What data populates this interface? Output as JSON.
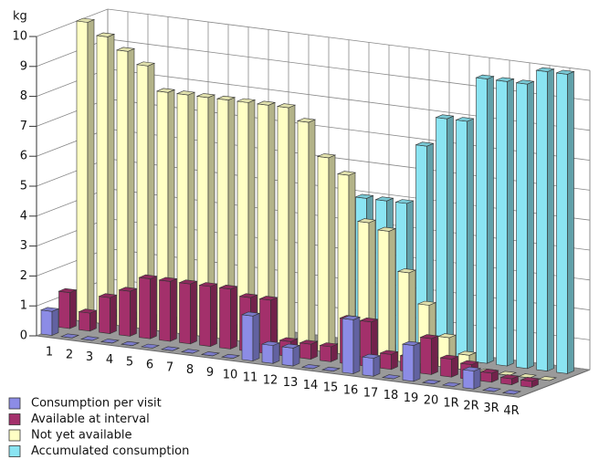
{
  "chart_data": {
    "type": "bar3d",
    "y_label": "kg",
    "categories": [
      "1",
      "2",
      "3",
      "4",
      "5",
      "6",
      "7",
      "8",
      "9",
      "10",
      "11",
      "12",
      "13",
      "14",
      "15",
      "16",
      "17",
      "18",
      "19",
      "20",
      "1R",
      "2R",
      "3R",
      "4R"
    ],
    "series": [
      {
        "name": "Consumption per visit",
        "color": "#8c8ce6",
        "values": [
          0.8,
          0,
          0,
          0,
          0,
          0,
          0,
          0,
          0,
          0,
          1.5,
          0.6,
          0.6,
          0,
          0,
          1.8,
          0.6,
          0,
          1.2,
          0,
          0,
          0.6,
          0,
          0
        ]
      },
      {
        "name": "Available at interval",
        "color": "#a3306b",
        "values": [
          1.2,
          0.6,
          1.2,
          1.5,
          2.0,
          2.0,
          2.0,
          2.0,
          2.0,
          1.8,
          1.8,
          0.5,
          0.5,
          0.5,
          1.5,
          1.5,
          0.5,
          0.5,
          1.2,
          0.6,
          0.5,
          0.3,
          0.2,
          0.2
        ]
      },
      {
        "name": "Not yet available",
        "color": "#ffffc4",
        "values": [
          10,
          9.6,
          9.2,
          8.8,
          8.0,
          8.0,
          8.0,
          8.0,
          8.0,
          8.0,
          8.0,
          7.6,
          6.5,
          6.0,
          4.5,
          4.3,
          3.0,
          2.0,
          1.0,
          0.5,
          0,
          0,
          0,
          0
        ]
      },
      {
        "name": "Accumulated consumption",
        "color": "#8ae4f2",
        "values": [
          0,
          0,
          0,
          0,
          0,
          0,
          0,
          0,
          0,
          0,
          0,
          0,
          0,
          5.0,
          5.0,
          5.0,
          7.0,
          8.0,
          8.0,
          9.5,
          9.5,
          9.5,
          10,
          10
        ]
      }
    ],
    "ylim": [
      0,
      10
    ],
    "yticks": [
      0,
      1,
      2,
      3,
      4,
      5,
      6,
      7,
      8,
      9,
      10
    ],
    "grid": true
  }
}
